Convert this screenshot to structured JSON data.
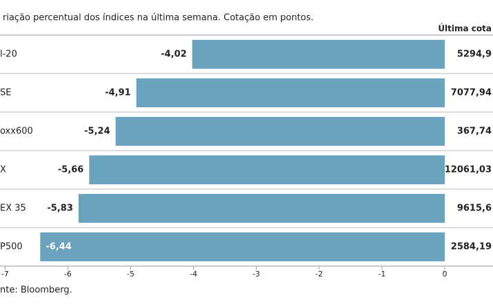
{
  "chart_data": {
    "type": "bar",
    "orientation": "horizontal",
    "title": "riação percentual dos índices na última semana. Cotação em pontos.",
    "categories": [
      "l-20",
      "SE",
      "oxx600",
      "X",
      "EX 35",
      "P500"
    ],
    "values": [
      -4.02,
      -4.91,
      -5.24,
      -5.66,
      -5.83,
      -6.44
    ],
    "value_labels": [
      "-4,02",
      "-4,91",
      "-5,24",
      "-5,66",
      "-5,83",
      "-6,44"
    ],
    "color": "#6aa3bd",
    "xlim": [
      -7.08,
      0
    ],
    "xticks": [
      -7,
      -6,
      -5,
      -4,
      -3,
      -2,
      -1,
      0
    ],
    "column_header": "Última cota",
    "column_values": [
      "5294,9",
      "7077,94",
      "367,74",
      "12061,03",
      "9615,6",
      "2584,19"
    ],
    "source": "nte: Bloomberg."
  }
}
